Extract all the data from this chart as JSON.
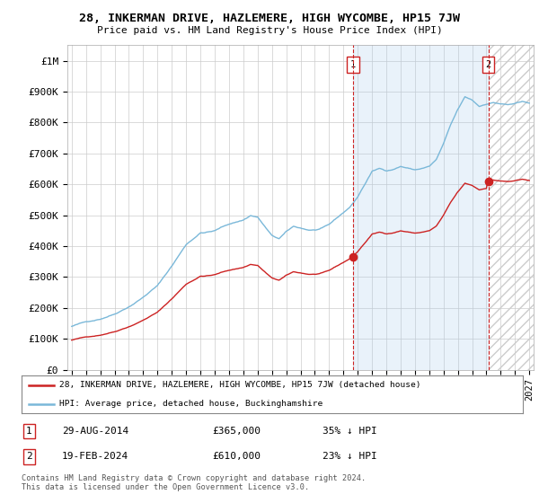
{
  "title": "28, INKERMAN DRIVE, HAZLEMERE, HIGH WYCOMBE, HP15 7JW",
  "subtitle": "Price paid vs. HM Land Registry's House Price Index (HPI)",
  "ylim": [
    0,
    1050000
  ],
  "yticks": [
    0,
    100000,
    200000,
    300000,
    400000,
    500000,
    600000,
    700000,
    800000,
    900000,
    1000000
  ],
  "ytick_labels": [
    "£0",
    "£100K",
    "£200K",
    "£300K",
    "£400K",
    "£500K",
    "£600K",
    "£700K",
    "£800K",
    "£900K",
    "£1M"
  ],
  "hpi_color": "#7ab8d9",
  "price_color": "#cc2222",
  "marker1_year": 2014.66,
  "marker1_value": 365000,
  "marker1_label": "1",
  "marker1_date_str": "29-AUG-2014",
  "marker1_price_str": "£365,000",
  "marker1_pct": "35% ↓ HPI",
  "marker2_year": 2024.13,
  "marker2_value": 610000,
  "marker2_label": "2",
  "marker2_date_str": "19-FEB-2024",
  "marker2_price_str": "£610,000",
  "marker2_pct": "23% ↓ HPI",
  "legend_line1": "28, INKERMAN DRIVE, HAZLEMERE, HIGH WYCOMBE, HP15 7JW (detached house)",
  "legend_line2": "HPI: Average price, detached house, Buckinghamshire",
  "footnote": "Contains HM Land Registry data © Crown copyright and database right 2024.\nThis data is licensed under the Open Government Licence v3.0.",
  "background_color": "#ffffff",
  "grid_color": "#cccccc",
  "vline_color": "#cc2222",
  "fill_between_color": "#ddeeff",
  "xlim_left": 1994.7,
  "xlim_right": 2027.3
}
